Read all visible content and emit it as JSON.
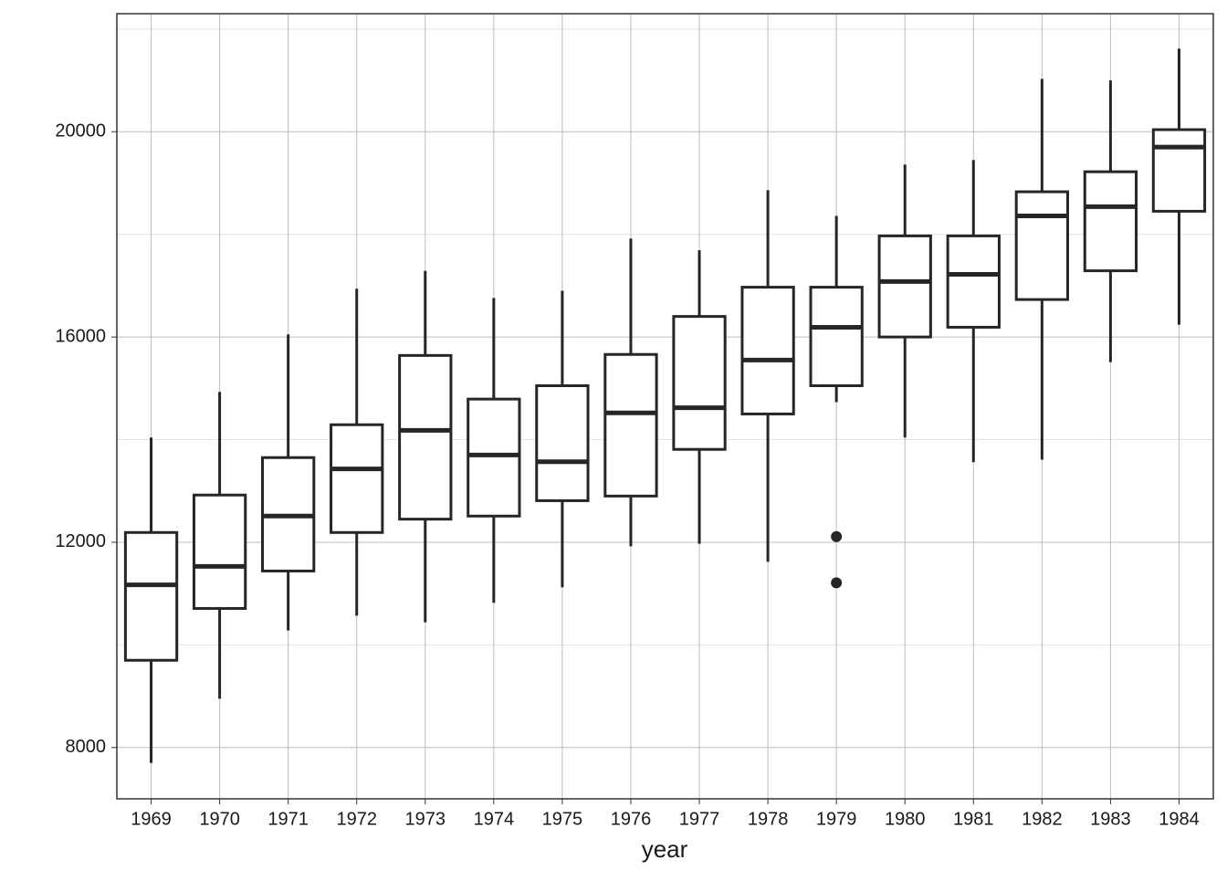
{
  "chart_data": {
    "type": "boxplot",
    "x_label": "year",
    "categories": [
      "1969",
      "1970",
      "1971",
      "1972",
      "1973",
      "1974",
      "1975",
      "1976",
      "1977",
      "1978",
      "1979",
      "1980",
      "1981",
      "1982",
      "1983",
      "1984"
    ],
    "boxes": [
      {
        "low": 7700,
        "q1": 9700,
        "median": 11170,
        "q3": 12190,
        "high": 14040
      },
      {
        "low": 8950,
        "q1": 10710,
        "median": 11530,
        "q3": 12920,
        "high": 14930
      },
      {
        "low": 10280,
        "q1": 11440,
        "median": 12510,
        "q3": 13650,
        "high": 16050
      },
      {
        "low": 10570,
        "q1": 12190,
        "median": 13430,
        "q3": 14290,
        "high": 16940
      },
      {
        "low": 10440,
        "q1": 12450,
        "median": 14180,
        "q3": 15640,
        "high": 17290
      },
      {
        "low": 10820,
        "q1": 12510,
        "median": 13700,
        "q3": 14790,
        "high": 16760
      },
      {
        "low": 11120,
        "q1": 12810,
        "median": 13570,
        "q3": 15050,
        "high": 16900
      },
      {
        "low": 11920,
        "q1": 12900,
        "median": 14520,
        "q3": 15660,
        "high": 17920
      },
      {
        "low": 11970,
        "q1": 13810,
        "median": 14620,
        "q3": 16400,
        "high": 17690
      },
      {
        "low": 11620,
        "q1": 14500,
        "median": 15550,
        "q3": 16970,
        "high": 18860
      },
      {
        "low": 14730,
        "q1": 15050,
        "median": 16190,
        "q3": 16970,
        "high": 18360,
        "outliers": [
          12110,
          11210
        ]
      },
      {
        "low": 14040,
        "q1": 16000,
        "median": 17080,
        "q3": 17970,
        "high": 19360
      },
      {
        "low": 13560,
        "q1": 16190,
        "median": 17220,
        "q3": 17970,
        "high": 19450
      },
      {
        "low": 13610,
        "q1": 16730,
        "median": 18360,
        "q3": 18830,
        "high": 21030
      },
      {
        "low": 15510,
        "q1": 17290,
        "median": 18540,
        "q3": 19220,
        "high": 21000
      },
      {
        "low": 16240,
        "q1": 18450,
        "median": 19700,
        "q3": 20040,
        "high": 21620
      }
    ],
    "color": "#262626",
    "ylim": [
      7000,
      22300
    ],
    "yticks": [
      8000,
      12000,
      16000,
      20000
    ],
    "yminor": [
      10000,
      14000,
      18000,
      22000
    ],
    "grid": true
  }
}
